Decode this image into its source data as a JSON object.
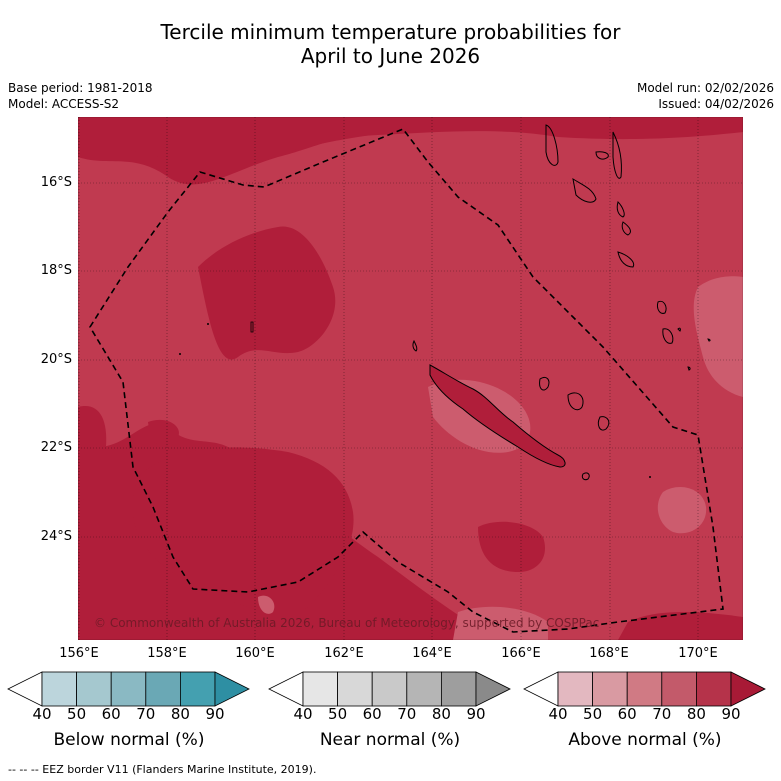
{
  "title": {
    "line1": "Tercile minimum temperature probabilities for",
    "line2": "April to June 2026"
  },
  "info": {
    "base_period": "Base period: 1981-2018",
    "model": "Model: ACCESS-S2",
    "model_run": "Model run: 02/02/2026",
    "issued": "Issued: 04/02/2026"
  },
  "map": {
    "lat_labels": [
      "16°S",
      "18°S",
      "20°S",
      "22°S",
      "24°S"
    ],
    "lon_labels": [
      "156°E",
      "158°E",
      "160°E",
      "162°E",
      "164°E",
      "166°E",
      "168°E",
      "170°E"
    ],
    "copyright": "© Commonwealth of Australia 2026, Bureau of Meteorology, supported by COSPPac",
    "colors": {
      "above_80_90": "#b01e3a",
      "above_70_80": "#c03a50",
      "above_60_70": "#cc5c6e"
    }
  },
  "colorbars": [
    {
      "label": "Below normal (%)",
      "ticks": [
        "40",
        "50",
        "60",
        "70",
        "80",
        "90"
      ],
      "colors": [
        "#ffffff",
        "#bcd5dc",
        "#a5c8cf",
        "#8ab9c3",
        "#6aa8b5",
        "#44a0b0",
        "#2e8fa3"
      ]
    },
    {
      "label": "Near normal (%)",
      "ticks": [
        "40",
        "50",
        "60",
        "70",
        "80",
        "90"
      ],
      "colors": [
        "#ffffff",
        "#e6e6e6",
        "#d8d8d8",
        "#c9c9c9",
        "#b5b5b5",
        "#9e9e9e",
        "#8a8a8a"
      ]
    },
    {
      "label": "Above normal (%)",
      "ticks": [
        "40",
        "50",
        "60",
        "70",
        "80",
        "90"
      ],
      "colors": [
        "#ffffff",
        "#e3b8c0",
        "#d99aa2",
        "#d07a84",
        "#c35a6a",
        "#b5334a",
        "#a81a36"
      ]
    }
  ],
  "footnote": "--  --  -- EEZ border V11 (Flanders Marine Institute, 2019)."
}
